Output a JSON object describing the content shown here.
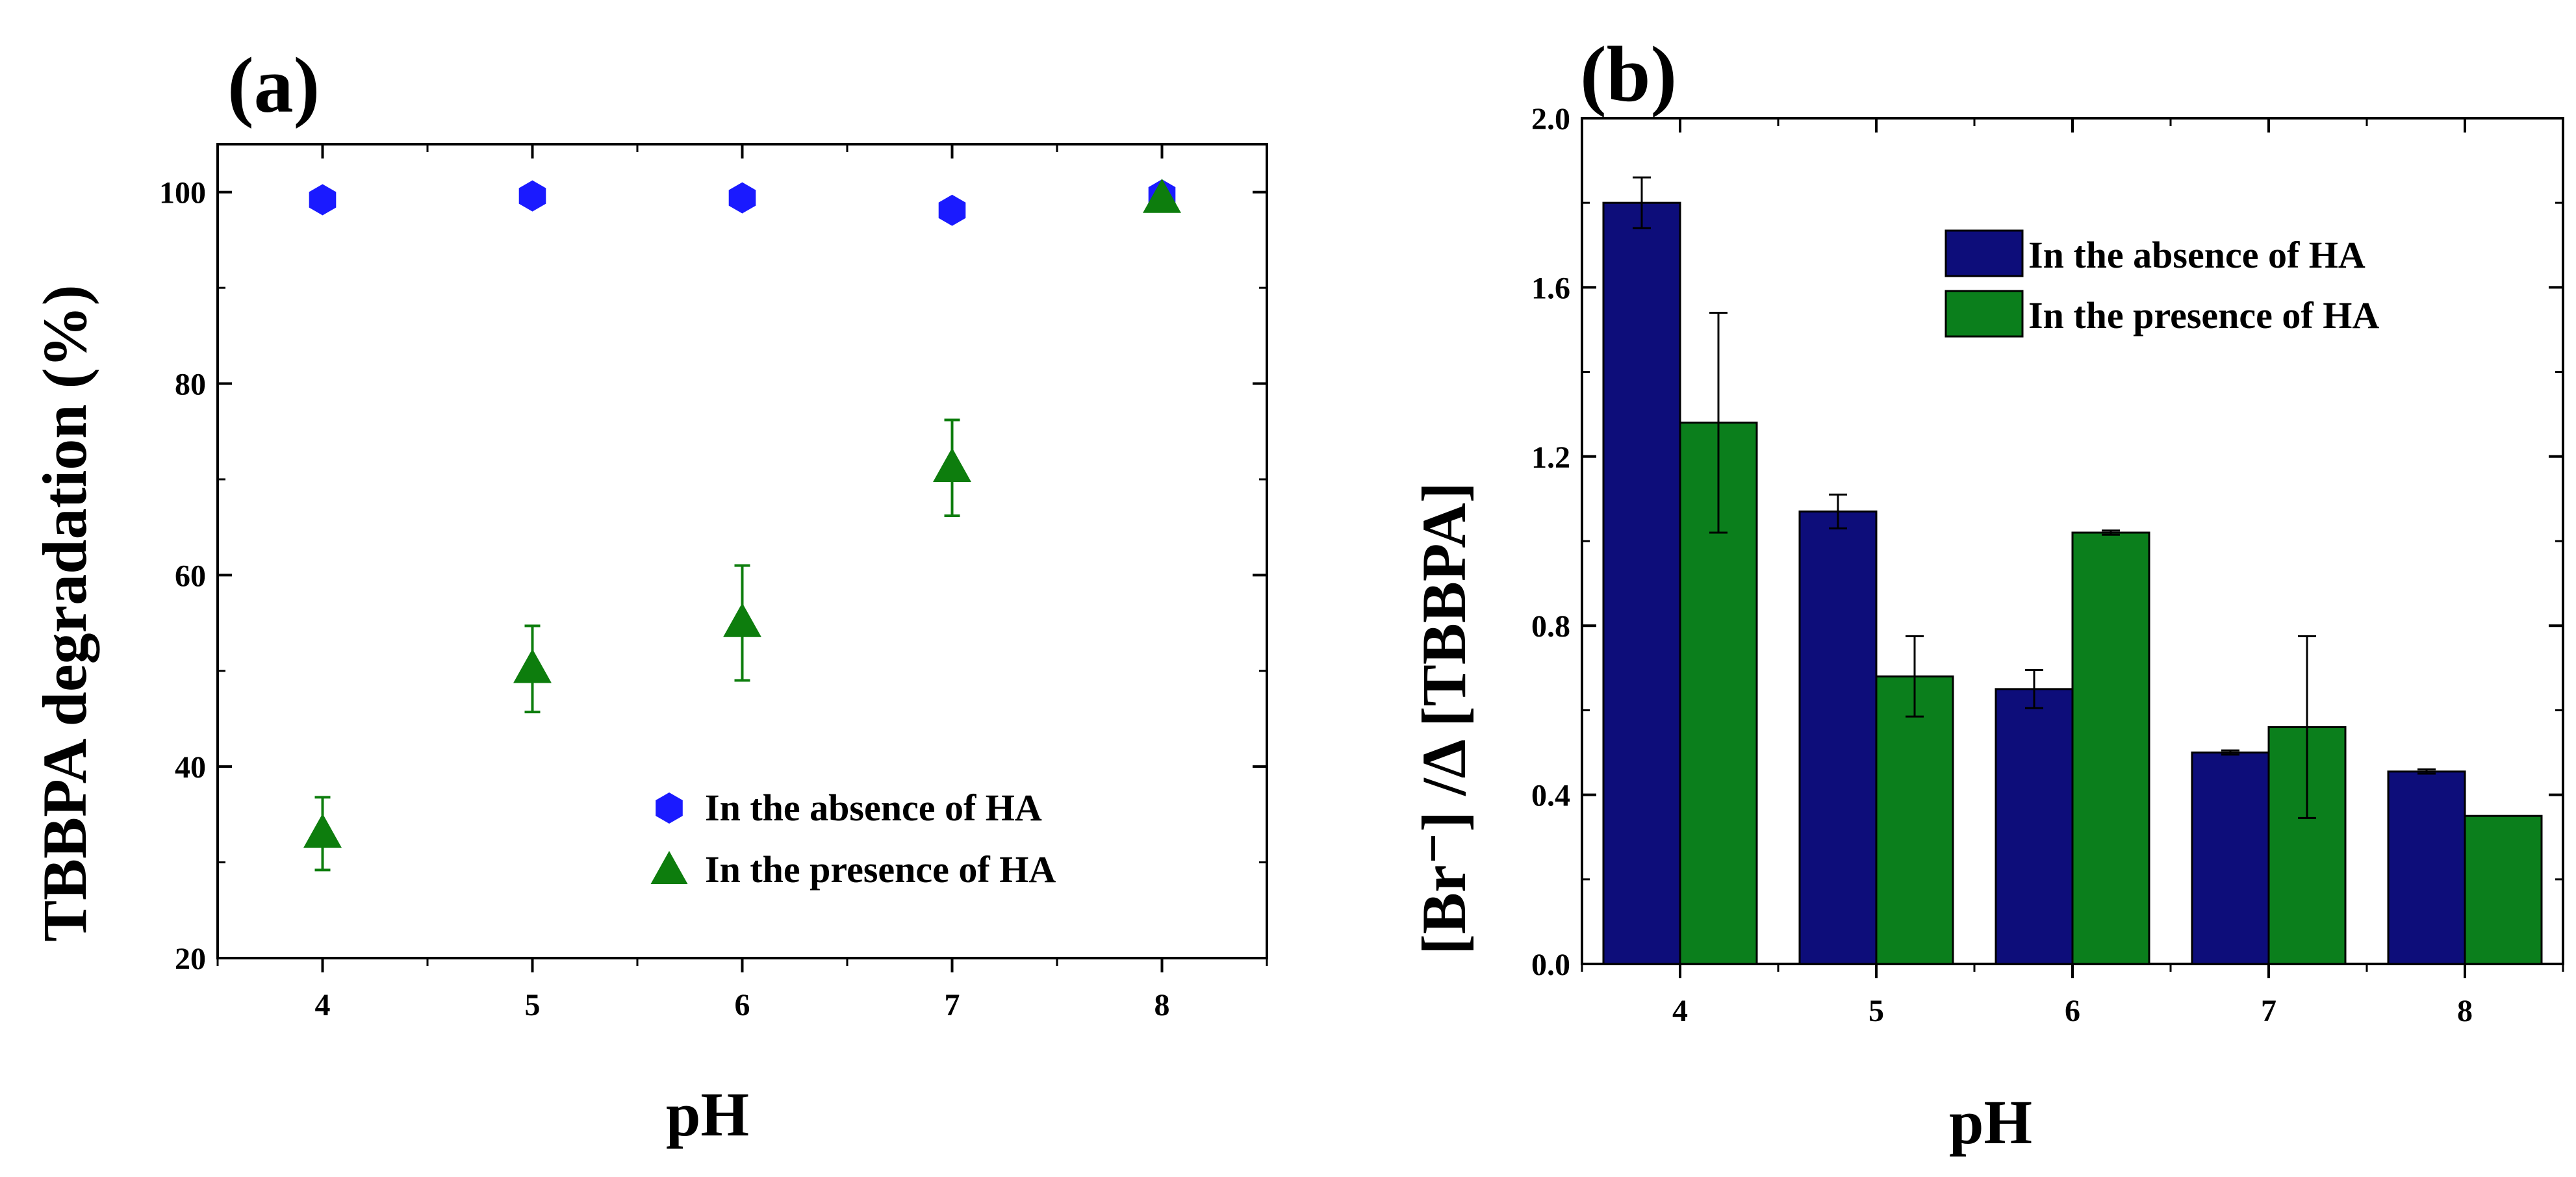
{
  "chart_data": [
    {
      "type": "scatter",
      "panel_label": "(a)",
      "xlabel": "pH",
      "ylabel": "TBBPA degradation (%)",
      "x": [
        4,
        5,
        6,
        7,
        8
      ],
      "xlim": [
        3.5,
        8.5
      ],
      "ylim": [
        20,
        105
      ],
      "xticks": [
        4,
        5,
        6,
        7,
        8
      ],
      "yticks": [
        20,
        40,
        60,
        80,
        100
      ],
      "legend_position": "bottom-right",
      "series": [
        {
          "name": "In the absence of HA",
          "marker": "hexagon",
          "color": "#1a1aff",
          "values": [
            99.2,
            99.6,
            99.4,
            98.1,
            99.7
          ],
          "errors": [
            0,
            0,
            0,
            0,
            0
          ]
        },
        {
          "name": "In the presence of HA",
          "marker": "triangle",
          "color": "#0d7d0d",
          "values": [
            33,
            50.2,
            55,
            71.2,
            99.3
          ],
          "errors": [
            3.8,
            4.5,
            6,
            5,
            0
          ]
        }
      ]
    },
    {
      "type": "bar",
      "panel_label": "(b)",
      "xlabel": "pH",
      "ylabel": "[Br⁻] /Δ [TBBPA]",
      "categories": [
        "4",
        "5",
        "6",
        "7",
        "8"
      ],
      "ylim": [
        0,
        2.0
      ],
      "yticks": [
        "0.0",
        "0.4",
        "0.8",
        "1.2",
        "1.6",
        "2.0"
      ],
      "legend_position": "top-right",
      "series": [
        {
          "name": "In the absence of HA",
          "color": "#0d0d7a",
          "values": [
            1.8,
            1.07,
            0.65,
            0.5,
            0.455
          ],
          "errors": [
            0.06,
            0.04,
            0.045,
            0.005,
            0.005
          ]
        },
        {
          "name": "In the presence of HA",
          "color": "#0b7f1c",
          "values": [
            1.28,
            0.68,
            1.02,
            0.56,
            0.35
          ],
          "errors": [
            0.26,
            0.095,
            0.005,
            0.215,
            0
          ]
        }
      ]
    }
  ]
}
